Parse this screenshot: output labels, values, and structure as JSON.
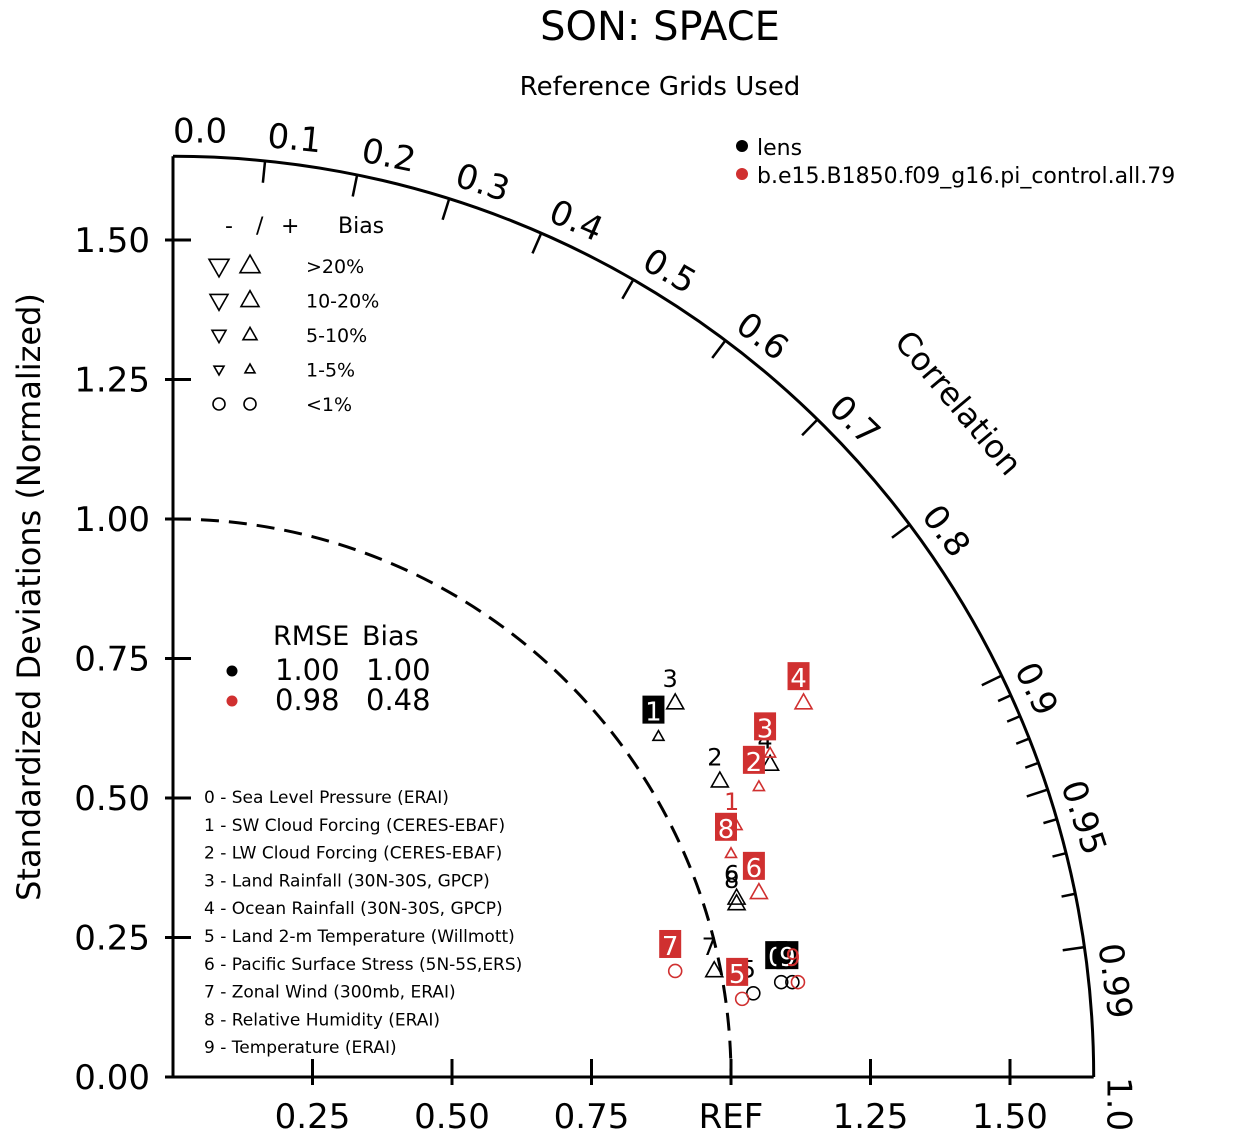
{
  "chart_data": {
    "type": "scatter",
    "subtype": "taylor-diagram",
    "title": "SON: SPACE",
    "subtitle": "Reference Grids Used",
    "ylabel": "Standardized Deviations (Normalized)",
    "arc_label": "Correlation",
    "ref_label": "REF",
    "xlim": [
      0,
      1.65
    ],
    "ylim": [
      0,
      1.65
    ],
    "y_ticks": [
      "0.00",
      "0.25",
      "0.50",
      "0.75",
      "1.00",
      "1.25",
      "1.50"
    ],
    "x_ticks": [
      "0.25",
      "0.50",
      "0.75",
      "REF",
      "1.25",
      "1.50"
    ],
    "corr_labels": [
      "0.0",
      "0.1",
      "0.2",
      "0.3",
      "0.4",
      "0.5",
      "0.6",
      "0.7",
      "0.8",
      "0.9",
      "0.95",
      "0.99",
      "1.0"
    ],
    "legend": [
      {
        "name": "lens",
        "color": "#000000"
      },
      {
        "name": "b.e15.B1850.f09_g16.pi_control.all.79",
        "color": "#d03030"
      }
    ],
    "bias_key": {
      "header": [
        "-",
        "/",
        "+",
        "Bias"
      ],
      "rows": [
        ">20%",
        "10-20%",
        "5-10%",
        "1-5%",
        "<1%"
      ]
    },
    "rmse_table": {
      "headers": [
        "RMSE",
        "Bias"
      ],
      "rows": [
        {
          "rmse": "1.00",
          "bias": "1.00",
          "color": "#000000"
        },
        {
          "rmse": "0.98",
          "bias": "0.48",
          "color": "#d03030"
        }
      ]
    },
    "variables": [
      "0 - Sea Level Pressure (ERAI)",
      "1 - SW Cloud Forcing (CERES-EBAF)",
      "2 - LW Cloud Forcing (CERES-EBAF)",
      "3 - Land Rainfall (30N-30S, GPCP)",
      "4 - Ocean Rainfall (30N-30S, GPCP)",
      "5 - Land 2-m Temperature (Willmott)",
      "6 - Pacific Surface Stress (5N-5S,ERS)",
      "7 - Zonal Wind (300mb, ERAI)",
      "8 - Relative Humidity (ERAI)",
      "9 - Temperature (ERAI)"
    ],
    "series": [
      {
        "name": "lens",
        "color": "#000000",
        "points": [
          {
            "id": "0",
            "x": 1.09,
            "y": 0.17,
            "marker": "circle",
            "boxed": true
          },
          {
            "id": "1",
            "x": 0.87,
            "y": 0.61,
            "marker": "triangle-up-small",
            "boxed": true
          },
          {
            "id": "2",
            "x": 0.98,
            "y": 0.53,
            "marker": "triangle-up",
            "boxed": false
          },
          {
            "id": "3",
            "x": 0.9,
            "y": 0.67,
            "marker": "triangle-up",
            "boxed": false
          },
          {
            "id": "4",
            "x": 1.07,
            "y": 0.56,
            "marker": "triangle-up",
            "boxed": false
          },
          {
            "id": "5",
            "x": 1.04,
            "y": 0.15,
            "marker": "circle",
            "boxed": false
          },
          {
            "id": "6",
            "x": 1.01,
            "y": 0.32,
            "marker": "triangle-up",
            "boxed": false
          },
          {
            "id": "7",
            "x": 0.97,
            "y": 0.19,
            "marker": "triangle-up",
            "boxed": false
          },
          {
            "id": "8",
            "x": 1.01,
            "y": 0.31,
            "marker": "triangle-up",
            "boxed": false
          },
          {
            "id": "9",
            "x": 1.11,
            "y": 0.17,
            "marker": "circle",
            "boxed": true
          }
        ]
      },
      {
        "name": "b.e15.B1850.f09_g16.pi_control.all.79",
        "color": "#d03030",
        "points": [
          {
            "id": "1",
            "x": 1.01,
            "y": 0.45,
            "marker": "triangle-up-small",
            "boxed": false
          },
          {
            "id": "2",
            "x": 1.05,
            "y": 0.52,
            "marker": "triangle-up-small",
            "boxed": true
          },
          {
            "id": "3",
            "x": 1.07,
            "y": 0.58,
            "marker": "triangle-up-small",
            "boxed": true
          },
          {
            "id": "4",
            "x": 1.13,
            "y": 0.67,
            "marker": "triangle-up",
            "boxed": true
          },
          {
            "id": "5",
            "x": 1.02,
            "y": 0.14,
            "marker": "circle",
            "boxed": true
          },
          {
            "id": "6",
            "x": 1.05,
            "y": 0.33,
            "marker": "triangle-up",
            "boxed": true
          },
          {
            "id": "7",
            "x": 0.9,
            "y": 0.19,
            "marker": "circle",
            "boxed": true
          },
          {
            "id": "8",
            "x": 1.0,
            "y": 0.4,
            "marker": "triangle-up-small",
            "boxed": true
          },
          {
            "id": "9",
            "x": 1.12,
            "y": 0.17,
            "marker": "circle",
            "boxed": false
          }
        ]
      }
    ]
  }
}
